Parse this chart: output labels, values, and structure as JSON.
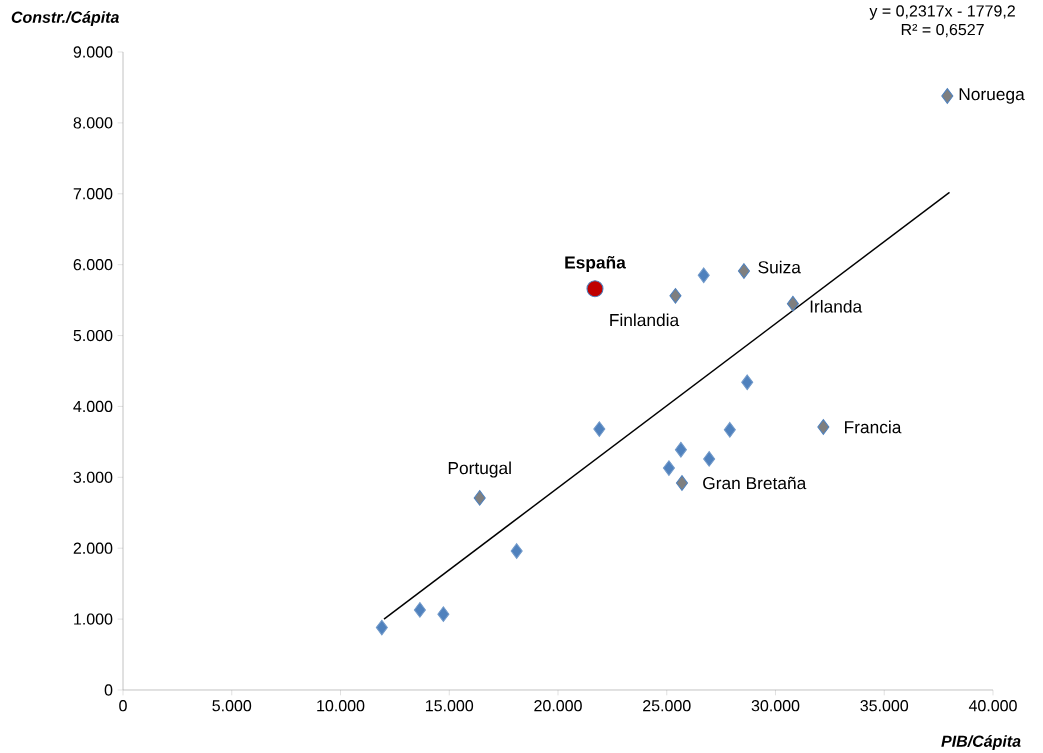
{
  "chart_data": {
    "type": "scatter",
    "xlabel": "PIB/Cápita",
    "ylabel": "Constr./Cápita",
    "xlim": [
      0,
      40000
    ],
    "ylim": [
      0,
      9000
    ],
    "xticks": [
      0,
      {
        "value": 5000,
        "label": "5.000"
      },
      {
        "value": 10000,
        "label": "10.000"
      },
      {
        "value": 15000,
        "label": "15.000"
      },
      {
        "value": 20000,
        "label": "20.000"
      },
      {
        "value": 25000,
        "label": "25.000"
      },
      {
        "value": 30000,
        "label": "30.000"
      },
      {
        "value": 35000,
        "label": "35.000"
      },
      {
        "value": 40000,
        "label": "40.000"
      }
    ],
    "yticks": [
      0,
      {
        "value": 1000,
        "label": "1.000"
      },
      {
        "value": 2000,
        "label": "2.000"
      },
      {
        "value": 3000,
        "label": "3.000"
      },
      {
        "value": 4000,
        "label": "4.000"
      },
      {
        "value": 5000,
        "label": "5.000"
      },
      {
        "value": 6000,
        "label": "6.000"
      },
      {
        "value": 7000,
        "label": "7.000"
      },
      {
        "value": 8000,
        "label": "8.000"
      },
      {
        "value": 9000,
        "label": "9.000"
      }
    ],
    "grid": false,
    "marker": "diamond",
    "series": [
      {
        "color": "#4f81bd",
        "x": [
          11900,
          13650,
          14730,
          18100,
          21900,
          25100,
          25650,
          26950,
          27900,
          28700,
          26700
        ],
        "values": [
          880,
          1130,
          1070,
          1960,
          3680,
          3130,
          3390,
          3260,
          3670,
          4340,
          5850
        ]
      },
      {
        "color": "#7f7f7f",
        "x": [
          16400,
          25700,
          25400,
          28550,
          30800,
          32200,
          37900
        ],
        "values": [
          2710,
          2920,
          5560,
          5910,
          5450,
          3710,
          8380
        ]
      },
      {
        "name": "España",
        "color": "#c00000",
        "marker": "circle",
        "x": [
          21700
        ],
        "values": [
          5660
        ]
      },
      {
        "type": "line",
        "color": "#000000",
        "marker": "none",
        "x": [
          12000,
          38000
        ],
        "values": [
          1000,
          7020
        ]
      }
    ],
    "annotations": [
      {
        "text": "Portugal",
        "x": 16400,
        "y": 2710
      },
      {
        "text": "Gran Bretaña",
        "x": 25700,
        "y": 2920
      },
      {
        "text": "Finlandia",
        "x": 25400,
        "y": 5560
      },
      {
        "text": "Suiza",
        "x": 28550,
        "y": 5910
      },
      {
        "text": "Irlanda",
        "x": 30800,
        "y": 5450
      },
      {
        "text": "Francia",
        "x": 32200,
        "y": 3710
      },
      {
        "text": "Noruega",
        "x": 37900,
        "y": 8380
      },
      "y = 0,2317x - 1779,2",
      "R² = 0,6527"
    ]
  }
}
